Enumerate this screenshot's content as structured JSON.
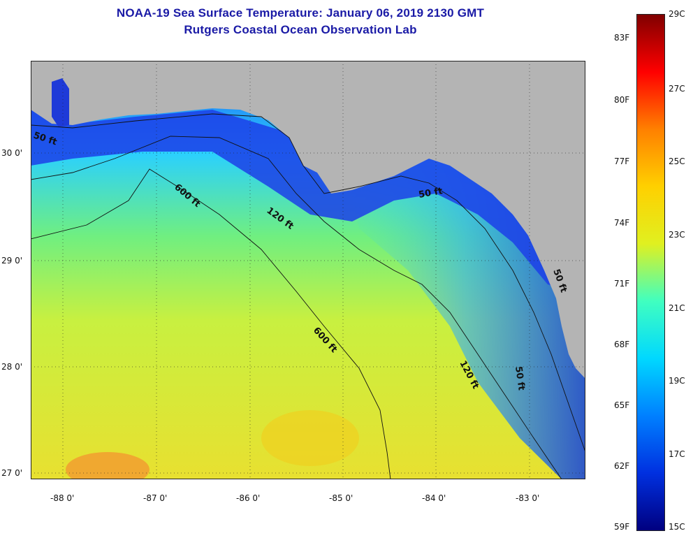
{
  "title": {
    "line1": "NOAA-19 Sea Surface Temperature:  January 06, 2019 2130 GMT",
    "line2": "Rutgers Coastal Ocean Observation Lab"
  },
  "map": {
    "lon_labels": [
      "-88 0'",
      "-87 0'",
      "-86 0'",
      "-85 0'",
      "-84 0'",
      "-83 0'"
    ],
    "lat_labels": [
      "30 0'",
      "29 0'",
      "28 0'",
      "27 0'"
    ],
    "contour_labels": [
      "50 ft",
      "600 ft",
      "120 ft",
      "50 ft",
      "600 ft",
      "120 ft",
      "50 ft",
      "50 ft"
    ],
    "colors": {
      "land": "#b4b4b4",
      "warm_water": "#e8e830",
      "cool_water": "#1e5cf0",
      "contour": "#111111"
    }
  },
  "colorbar": {
    "fahrenheit_labels": [
      "83F",
      "80F",
      "77F",
      "74F",
      "71F",
      "68F",
      "65F",
      "62F",
      "59F"
    ],
    "celsius_labels": [
      "29C",
      "27C",
      "25C",
      "23C",
      "21C",
      "19C",
      "17C",
      "15C"
    ],
    "colors": [
      "#800000",
      "#ff0000",
      "#ff8000",
      "#ffd000",
      "#e0f020",
      "#40ffc0",
      "#00d8ff",
      "#0080ff",
      "#0030e0",
      "#000080"
    ]
  }
}
